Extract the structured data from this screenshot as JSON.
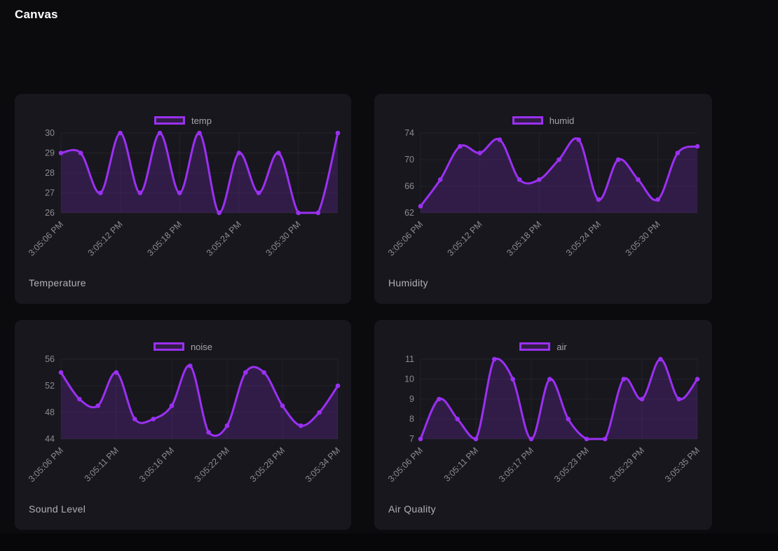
{
  "page": {
    "title": "Canvas"
  },
  "theme": {
    "background": "#0b0b0e",
    "card_background": "#17171d",
    "accent": "#9b30f2",
    "area_fill": "rgba(124,42,194,0.26)",
    "grid_color": "rgba(255,255,255,0.05)",
    "tick_color": "#8b8b90",
    "title_color": "#b0b0b5",
    "legend_color": "#a5a5aa"
  },
  "chart_data": [
    {
      "type": "line",
      "title": "Temperature",
      "legend": "temp",
      "xtick_labels": [
        "3:05:06 PM",
        "3:05:12 PM",
        "3:05:18 PM",
        "3:05:24 PM",
        "3:05:30 PM"
      ],
      "xtick_indices": [
        0,
        3,
        6,
        9,
        12
      ],
      "values": [
        29,
        29,
        27,
        30,
        27,
        30,
        27,
        30,
        26,
        29,
        27,
        29,
        26,
        26,
        30
      ],
      "yticks": [
        26,
        27,
        28,
        29,
        30
      ],
      "ylim": [
        26,
        30
      ]
    },
    {
      "type": "line",
      "title": "Humidity",
      "legend": "humid",
      "xtick_labels": [
        "3:05:06 PM",
        "3:05:12 PM",
        "3:05:18 PM",
        "3:05:24 PM",
        "3:05:30 PM"
      ],
      "xtick_indices": [
        0,
        3,
        6,
        9,
        12
      ],
      "values": [
        63,
        67,
        72,
        71,
        73,
        67,
        67,
        70,
        73,
        64,
        70,
        67,
        64,
        71,
        72
      ],
      "yticks": [
        62,
        66,
        70,
        74
      ],
      "ylim": [
        62,
        74
      ]
    },
    {
      "type": "line",
      "title": "Sound Level",
      "legend": "noise",
      "xtick_labels": [
        "3:05:06 PM",
        "3:05:11 PM",
        "3:05:16 PM",
        "3:05:22 PM",
        "3:05:28 PM",
        "3:05:34 PM"
      ],
      "xtick_indices": [
        0,
        3,
        6,
        9,
        12,
        15
      ],
      "values": [
        54,
        50,
        49,
        54,
        47,
        47,
        49,
        55,
        45,
        46,
        54,
        54,
        49,
        46,
        48,
        52
      ],
      "yticks": [
        44,
        48,
        52,
        56
      ],
      "ylim": [
        44,
        56
      ]
    },
    {
      "type": "line",
      "title": "Air Quality",
      "legend": "air",
      "xtick_labels": [
        "3:05:06 PM",
        "3:05:11 PM",
        "3:05:17 PM",
        "3:05:23 PM",
        "3:05:29 PM",
        "3:05:35 PM"
      ],
      "xtick_indices": [
        0,
        3,
        6,
        9,
        12,
        15
      ],
      "values": [
        7,
        9,
        8,
        7,
        11,
        10,
        7,
        10,
        8,
        7,
        7,
        10,
        9,
        11,
        9,
        10
      ],
      "yticks": [
        7,
        8,
        9,
        10,
        11
      ],
      "ylim": [
        7,
        11
      ]
    }
  ]
}
